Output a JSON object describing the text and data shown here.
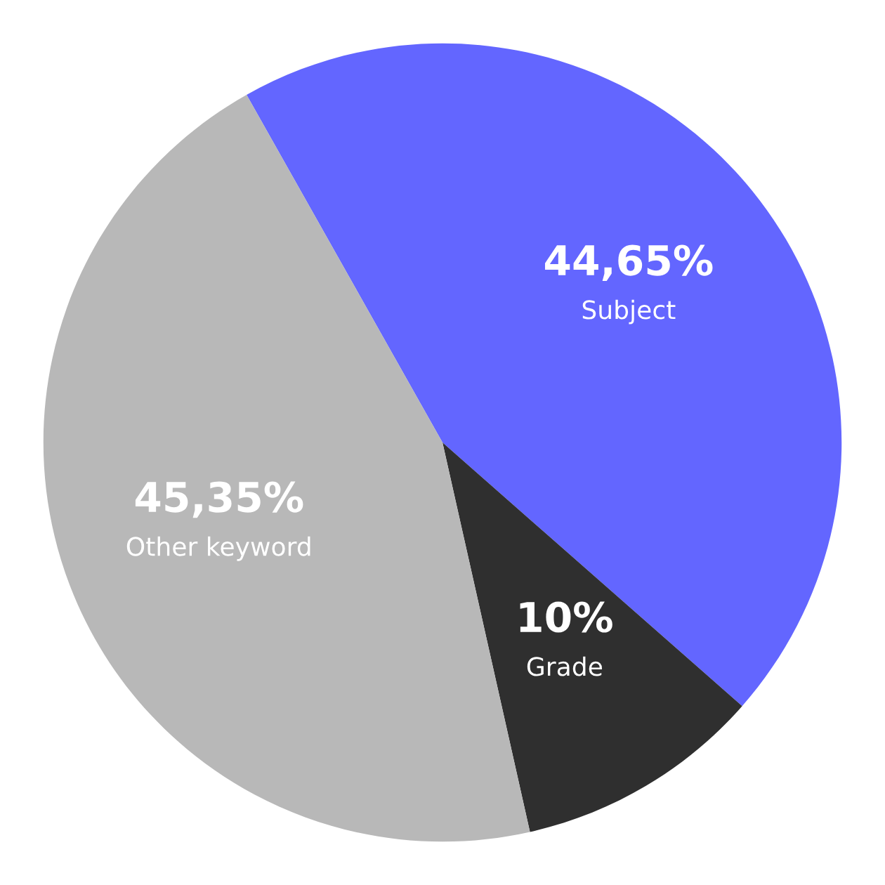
{
  "chart_data": {
    "type": "pie",
    "categories": [
      "Subject",
      "Grade",
      "Other keyword"
    ],
    "values": [
      44.65,
      10,
      45.35
    ],
    "value_labels": [
      "44,65%",
      "10%",
      "45,35%"
    ],
    "colors": [
      "#6366ff",
      "#2f2f2f",
      "#b8b8b8"
    ],
    "legend": false
  }
}
